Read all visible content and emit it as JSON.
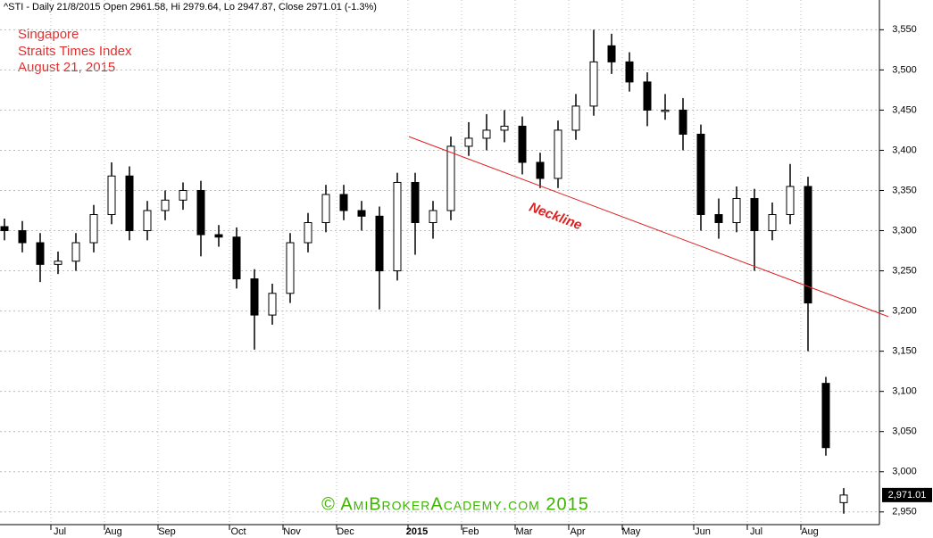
{
  "chart_data": {
    "type": "candlestick",
    "title": "^STI - Daily 21/8/2015 Open 2961.58, Hi 2979.64, Lo 2947.87, Close 2971.01 (-1.3%)",
    "annotations": [
      "Singapore",
      "Straits Times Index",
      "August 21, 2015"
    ],
    "watermark": "© AmiBrokerAcademy.com 2015",
    "categories": [
      null,
      null,
      null,
      "Jul",
      null,
      null,
      "Aug",
      null,
      null,
      "Sep",
      null,
      null,
      null,
      "Oct",
      null,
      null,
      "Nov",
      null,
      null,
      "Dec",
      null,
      null,
      null,
      "2015",
      null,
      null,
      "Feb",
      null,
      null,
      "Mar",
      null,
      null,
      "Apr",
      null,
      null,
      "May",
      null,
      null,
      null,
      "Jun",
      null,
      null,
      "Jul",
      null,
      null,
      "Aug",
      null,
      null
    ],
    "open": [
      3305,
      3300,
      3285,
      3258,
      3262,
      3285,
      3320,
      3368,
      3300,
      3325,
      3338,
      3350,
      3295,
      3292,
      3240,
      3195,
      3222,
      3285,
      3310,
      3345,
      3325,
      3318,
      3250,
      3360,
      3310,
      3325,
      3405,
      3415,
      3425,
      3430,
      3385,
      3365,
      3425,
      3455,
      3530,
      3510,
      3485,
      3450,
      3450,
      3420,
      3320,
      3310,
      3340,
      3300,
      3320,
      3355,
      3110,
      2961.58
    ],
    "high": [
      3315,
      3312,
      3297,
      3274,
      3297,
      3332,
      3385,
      3380,
      3337,
      3350,
      3360,
      3362,
      3307,
      3304,
      3252,
      3234,
      3297,
      3322,
      3357,
      3357,
      3337,
      3330,
      3372,
      3372,
      3337,
      3417,
      3435,
      3445,
      3450,
      3442,
      3397,
      3437,
      3470,
      3550,
      3545,
      3522,
      3497,
      3470,
      3465,
      3432,
      3340,
      3355,
      3352,
      3335,
      3383,
      3367,
      3118,
      2979.64
    ],
    "low": [
      3288,
      3273,
      3236,
      3246,
      3250,
      3273,
      3308,
      3288,
      3288,
      3313,
      3326,
      3268,
      3280,
      3228,
      3152,
      3183,
      3210,
      3273,
      3298,
      3313,
      3300,
      3202,
      3238,
      3270,
      3290,
      3313,
      3393,
      3400,
      3410,
      3370,
      3353,
      3353,
      3413,
      3443,
      3495,
      3473,
      3430,
      3438,
      3400,
      3300,
      3290,
      3298,
      3250,
      3288,
      3308,
      3150,
      3020,
      2947.87
    ],
    "close": [
      3300,
      3285,
      3258,
      3262,
      3285,
      3320,
      3368,
      3300,
      3325,
      3338,
      3350,
      3295,
      3292,
      3240,
      3195,
      3222,
      3285,
      3310,
      3345,
      3325,
      3318,
      3250,
      3360,
      3310,
      3325,
      3405,
      3415,
      3425,
      3430,
      3385,
      3365,
      3425,
      3455,
      3510,
      3510,
      3485,
      3450,
      3450,
      3420,
      3320,
      3310,
      3340,
      3300,
      3320,
      3355,
      3210,
      3030,
      2971.01
    ],
    "last_price": {
      "value": 2971.01,
      "label": "2,971.01"
    },
    "trendline": {
      "label": "Neckline",
      "values": [
        3417,
        3193
      ],
      "color": "#e02020"
    },
    "color": "#000000",
    "ylim": [
      2932,
      3587
    ],
    "yticks": [
      {
        "value": 2950,
        "label": "2,950"
      },
      {
        "value": 3000,
        "label": "3,000"
      },
      {
        "value": 3050,
        "label": "3,050"
      },
      {
        "value": 3100,
        "label": "3,100"
      },
      {
        "value": 3150,
        "label": "3,150"
      },
      {
        "value": 3200,
        "label": "3,200"
      },
      {
        "value": 3250,
        "label": "3,250"
      },
      {
        "value": 3300,
        "label": "3,300"
      },
      {
        "value": 3350,
        "label": "3,350"
      },
      {
        "value": 3400,
        "label": "3,400"
      },
      {
        "value": 3450,
        "label": "3,450"
      },
      {
        "value": 3500,
        "label": "3,500"
      },
      {
        "value": 3550,
        "label": "3,550"
      }
    ],
    "grid": true
  }
}
